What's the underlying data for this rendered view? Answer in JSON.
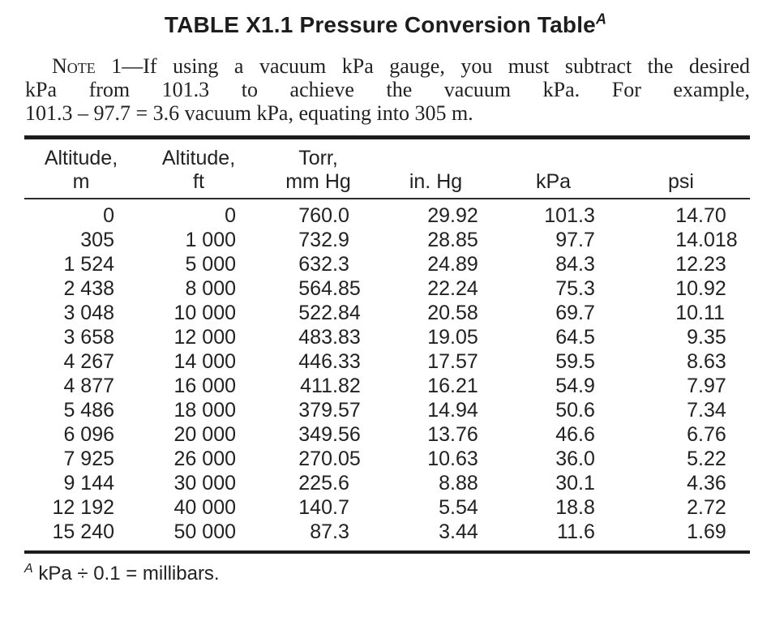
{
  "title": {
    "text": "TABLE X1.1 Pressure Conversion Table",
    "superscript": "A"
  },
  "note": {
    "label": "Note",
    "line1_rest": "1—If using a vacuum kPa gauge, you must subtract the desired",
    "line2": "kPa from 101.3 to achieve the vacuum kPa. For example,",
    "line3": "101.3 – 97.7 = 3.6 vacuum kPa, equating into 305 m."
  },
  "table": {
    "column_headers": [
      {
        "line1": "Altitude,",
        "line2": "m"
      },
      {
        "line1": "Altitude,",
        "line2": "ft"
      },
      {
        "line1": "Torr,",
        "line2": "mm Hg"
      },
      {
        "line1": "",
        "line2": "in. Hg"
      },
      {
        "line1": "",
        "line2": "kPa"
      },
      {
        "line1": "",
        "line2": "psi"
      }
    ],
    "rows": [
      [
        "0",
        "0",
        "760.0",
        "29.92",
        "101.3",
        "14.70"
      ],
      [
        "305",
        "1 000",
        "732.9",
        "28.85",
        "97.7",
        "14.018"
      ],
      [
        "1 524",
        "5 000",
        "632.3",
        "24.89",
        "84.3",
        "12.23"
      ],
      [
        "2 438",
        "8 000",
        "564.85",
        "22.24",
        "75.3",
        "10.92"
      ],
      [
        "3 048",
        "10 000",
        "522.84",
        "20.58",
        "69.7",
        "10.11"
      ],
      [
        "3 658",
        "12 000",
        "483.83",
        "19.05",
        "64.5",
        "9.35"
      ],
      [
        "4 267",
        "14 000",
        "446.33",
        "17.57",
        "59.5",
        "8.63"
      ],
      [
        "4 877",
        "16 000",
        "411.82",
        "16.21",
        "54.9",
        "7.97"
      ],
      [
        "5 486",
        "18 000",
        "379.57",
        "14.94",
        "50.6",
        "7.34"
      ],
      [
        "6 096",
        "20 000",
        "349.56",
        "13.76",
        "46.6",
        "6.76"
      ],
      [
        "7 925",
        "26 000",
        "270.05",
        "10.63",
        "36.0",
        "5.22"
      ],
      [
        "9 144",
        "30 000",
        "225.6",
        "8.88",
        "30.1",
        "4.36"
      ],
      [
        "12 192",
        "40 000",
        "140.7",
        "5.54",
        "18.8",
        "2.72"
      ],
      [
        "15 240",
        "50 000",
        "87.3",
        "3.44",
        "11.6",
        "1.69"
      ]
    ]
  },
  "footnote": {
    "marker": "A",
    "text": "kPa ÷ 0.1 = millibars."
  },
  "colors": {
    "text": "#1d1d1d",
    "rule": "#1c1c1c",
    "background": "#ffffff"
  }
}
